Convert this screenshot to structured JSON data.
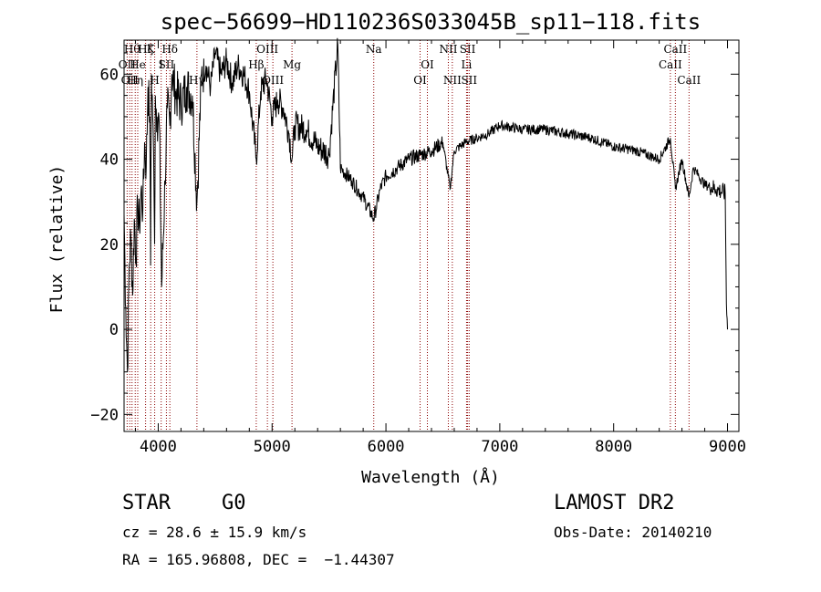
{
  "chart_data": {
    "type": "line",
    "title": "spec−56699−HD110236S033045B_sp11−118.fits",
    "xlabel": "Wavelength (Å)",
    "ylabel": "Flux (relative)",
    "xlim": [
      3700,
      9100
    ],
    "ylim": [
      -24,
      68
    ],
    "x_ticks": [
      4000,
      5000,
      6000,
      7000,
      8000,
      9000
    ],
    "x_tick_labels": [
      "4000",
      "5000",
      "6000",
      "7000",
      "8000",
      "9000"
    ],
    "y_ticks": [
      -20,
      0,
      20,
      40,
      60
    ],
    "y_tick_labels": [
      "−20",
      "0",
      "20",
      "40",
      "60"
    ],
    "grid": false,
    "line_color": "#000000",
    "marker_color": "#8b0000",
    "series": [
      {
        "x": [
          3700,
          3715,
          3730,
          3745,
          3760,
          3775,
          3790,
          3805,
          3820,
          3835,
          3850,
          3865,
          3880,
          3895,
          3910,
          3925,
          3933,
          3940,
          3955,
          3968,
          3975,
          3990,
          4010,
          4030,
          4060,
          4080,
          4102,
          4120,
          4150,
          4200,
          4250,
          4300,
          4340,
          4380,
          4420,
          4460,
          4500,
          4550,
          4600,
          4650,
          4700,
          4750,
          4800,
          4861,
          4900,
          4950,
          5000,
          5050,
          5100,
          5150,
          5175,
          5200,
          5300,
          5400,
          5500,
          5577,
          5600,
          5700,
          5800,
          5893,
          5950,
          6000,
          6100,
          6200,
          6300,
          6400,
          6500,
          6563,
          6600,
          6700,
          6800,
          6900,
          7000,
          7200,
          7400,
          7600,
          7800,
          8000,
          8200,
          8400,
          8498,
          8542,
          8600,
          8662,
          8700,
          8800,
          8900,
          8980,
          8990,
          9000
        ],
        "y": [
          27,
          5,
          -10,
          15,
          22,
          8,
          26,
          17,
          29,
          24,
          33,
          28,
          44,
          38,
          57,
          50,
          15,
          60,
          48,
          20,
          55,
          50,
          48,
          10,
          35,
          52,
          48,
          60,
          56,
          53,
          57,
          55,
          30,
          60,
          62,
          57,
          65,
          60,
          63,
          58,
          62,
          60,
          56,
          40,
          56,
          59,
          50,
          54,
          52,
          46,
          40,
          48,
          47,
          43,
          41,
          67,
          38,
          35,
          31,
          26,
          33,
          36,
          38,
          40,
          41,
          42,
          44,
          33,
          42,
          44,
          45,
          46,
          48,
          47,
          47,
          46,
          45,
          43,
          42,
          40,
          45,
          33,
          40,
          31,
          38,
          34,
          33,
          32,
          6,
          0
        ]
      }
    ],
    "lines": [
      {
        "x": 3727,
        "labels": [
          "OII"
        ],
        "rows": [
          1
        ]
      },
      {
        "x": 3750,
        "labels": [
          "OII"
        ],
        "rows": [
          2
        ]
      },
      {
        "x": 3770,
        "labels": [
          "Hθ"
        ],
        "rows": [
          0
        ]
      },
      {
        "x": 3798,
        "labels": [
          "Hη"
        ],
        "rows": [
          2
        ]
      },
      {
        "x": 3820,
        "labels": [
          "He"
        ],
        "rows": [
          1
        ]
      },
      {
        "x": 3889,
        "labels": [
          "Hζ"
        ],
        "rows": [
          0
        ]
      },
      {
        "x": 3934,
        "labels": [
          "K"
        ],
        "rows": [
          0
        ]
      },
      {
        "x": 3969,
        "labels": [
          "H"
        ],
        "rows": [
          2
        ]
      },
      {
        "x": 4026,
        "labels": [
          "I"
        ],
        "rows": [
          1
        ]
      },
      {
        "x": 4072,
        "labels": [
          "SII"
        ],
        "rows": [
          1
        ]
      },
      {
        "x": 4102,
        "labels": [
          "Hδ"
        ],
        "rows": [
          0
        ]
      },
      {
        "x": 4340,
        "labels": [
          "Hγ"
        ],
        "rows": [
          2
        ]
      },
      {
        "x": 4861,
        "labels": [
          "Hβ"
        ],
        "rows": [
          1
        ]
      },
      {
        "x": 4959,
        "labels": [
          "OIII"
        ],
        "rows": [
          0
        ]
      },
      {
        "x": 5007,
        "labels": [
          "OIII"
        ],
        "rows": [
          2
        ]
      },
      {
        "x": 5175,
        "labels": [
          "Mg"
        ],
        "rows": [
          1
        ]
      },
      {
        "x": 5893,
        "labels": [
          "Na"
        ],
        "rows": [
          0
        ]
      },
      {
        "x": 6300,
        "labels": [
          "OI"
        ],
        "rows": [
          2
        ]
      },
      {
        "x": 6364,
        "labels": [
          "OI"
        ],
        "rows": [
          1
        ]
      },
      {
        "x": 6548,
        "labels": [
          "NII"
        ],
        "rows": [
          0
        ]
      },
      {
        "x": 6583,
        "labels": [
          "NII"
        ],
        "rows": [
          2
        ]
      },
      {
        "x": 6708,
        "labels": [
          "Li"
        ],
        "rows": [
          1
        ]
      },
      {
        "x": 6717,
        "labels": [
          "SII"
        ],
        "rows": [
          0
        ]
      },
      {
        "x": 6731,
        "labels": [
          "SII"
        ],
        "rows": [
          2
        ]
      },
      {
        "x": 8498,
        "labels": [
          "CaII"
        ],
        "rows": [
          1
        ]
      },
      {
        "x": 8542,
        "labels": [
          "CaII"
        ],
        "rows": [
          0
        ]
      },
      {
        "x": 8662,
        "labels": [
          "CaII"
        ],
        "rows": [
          2
        ]
      }
    ]
  },
  "info": {
    "class_label": "STAR",
    "subclass": "G0",
    "survey": "LAMOST DR2",
    "cz": "cz = 28.6 ± 15.9 km/s",
    "obs_date": "Obs-Date: 20140210",
    "coords": "RA = 165.96808, DEC =  −1.44307"
  }
}
